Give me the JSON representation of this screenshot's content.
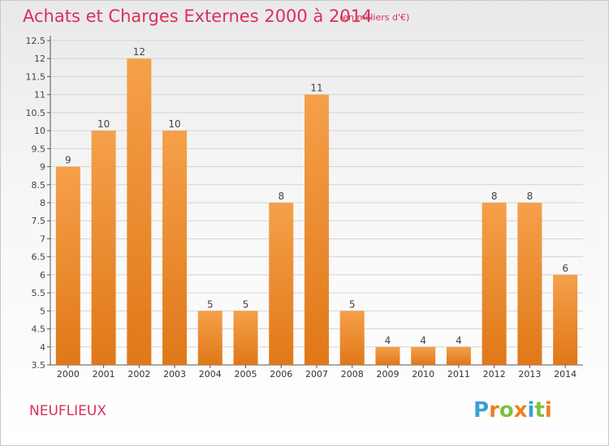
{
  "header": {
    "title": "Achats et Charges Externes 2000 à 2014",
    "subtitle": "(en milliers d'€)"
  },
  "footer": {
    "commune": "NEUFLIEUX",
    "logo": [
      "P",
      "r",
      "o",
      "x",
      "i",
      "t",
      "i"
    ]
  },
  "colors": {
    "title": "#d9305b",
    "bar_top": "#f5a04a",
    "bar_bottom": "#e07818",
    "logo": [
      "#3aa0d8",
      "#f07f1b",
      "#7cc242",
      "#f07f1b",
      "#3aa0d8",
      "#7cc242",
      "#f07f1b"
    ]
  },
  "chart_data": {
    "type": "bar",
    "title": "Achats et Charges Externes 2000 à 2014",
    "subtitle": "(en milliers d'€)",
    "categories": [
      "2000",
      "2001",
      "2002",
      "2003",
      "2004",
      "2005",
      "2006",
      "2007",
      "2008",
      "2009",
      "2010",
      "2011",
      "2012",
      "2013",
      "2014"
    ],
    "values": [
      9,
      10,
      12,
      10,
      5,
      5,
      8,
      11,
      5,
      4,
      4,
      4,
      8,
      8,
      6
    ],
    "data_labels": [
      "9",
      "10",
      "12",
      "10",
      "5",
      "5",
      "8",
      "11",
      "5",
      "4",
      "4",
      "4",
      "8",
      "8",
      "6"
    ],
    "yticks": [
      "3.5",
      "4",
      "4.5",
      "5",
      "5.5",
      "6",
      "6.5",
      "7",
      "7.5",
      "8",
      "8.5",
      "9",
      "9.5",
      "10",
      "10.5",
      "11",
      "11.5",
      "12",
      "12.5"
    ],
    "ylim": [
      3.5,
      12.5
    ],
    "xlabel": "",
    "ylabel": "",
    "grid": true,
    "legend": "none"
  }
}
